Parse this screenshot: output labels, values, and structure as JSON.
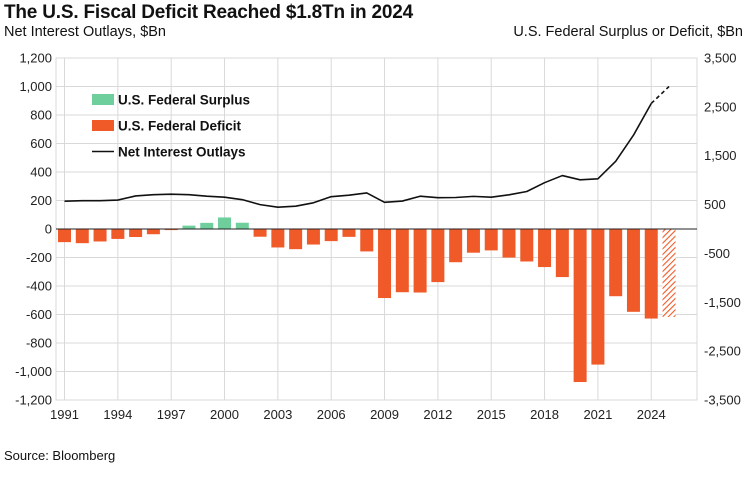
{
  "title": "The U.S. Fiscal Deficit Reached $1.8Tn in 2024",
  "left_axis_label": "Net Interest Outlays, $Bn",
  "right_axis_label": "U.S. Federal Surplus or Deficit, $Bn",
  "source": "Source: Bloomberg",
  "colors": {
    "surplus": "#6fcf9c",
    "deficit": "#f05a28",
    "interest": "#111111",
    "grid": "#d9d9d9"
  },
  "chart_data": {
    "type": "bar",
    "grid": true,
    "legend_position": "top-left",
    "left_axis": {
      "min": -1200,
      "max": 1200,
      "ticks": [
        1200,
        1000,
        800,
        600,
        400,
        200,
        0,
        -200,
        -400,
        -600,
        -800,
        -1000,
        -1200
      ],
      "tick_labels": [
        "1,200",
        "1,000",
        "800",
        "600",
        "400",
        "200",
        "0",
        "-200",
        "-400",
        "-600",
        "-800",
        "-1,000",
        "-1,200"
      ]
    },
    "right_axis": {
      "min": -3500,
      "max": 3500,
      "ticks": [
        3500,
        2500,
        1500,
        500,
        -500,
        -1500,
        -2500,
        -3500
      ],
      "tick_labels": [
        "3,500",
        "2,500",
        "1,500",
        "500",
        "-500",
        "-1,500",
        "-2,500",
        "-3,500"
      ]
    },
    "x_tick_years": [
      1991,
      1994,
      1997,
      2000,
      2003,
      2006,
      2009,
      2012,
      2015,
      2018,
      2021,
      2024
    ],
    "x_tick_labels": [
      "1991",
      "1994",
      "1997",
      "2000",
      "2003",
      "2006",
      "2009",
      "2012",
      "2015",
      "2018",
      "2021",
      "2024"
    ],
    "years": [
      1991,
      1992,
      1993,
      1994,
      1995,
      1996,
      1997,
      1998,
      1999,
      2000,
      2001,
      2002,
      2003,
      2004,
      2005,
      2006,
      2007,
      2008,
      2009,
      2010,
      2011,
      2012,
      2013,
      2014,
      2015,
      2016,
      2017,
      2018,
      2019,
      2020,
      2021,
      2022,
      2023,
      2024,
      2025
    ],
    "series": [
      {
        "name": "U.S. Federal Surplus",
        "type": "bar",
        "values": [
          null,
          null,
          null,
          null,
          null,
          null,
          null,
          69,
          126,
          236,
          128,
          null,
          null,
          null,
          null,
          null,
          null,
          null,
          null,
          null,
          null,
          null,
          null,
          null,
          null,
          null,
          null,
          null,
          null,
          null,
          null,
          null,
          null,
          null,
          null
        ]
      },
      {
        "name": "U.S. Federal Deficit",
        "type": "bar",
        "values": [
          -269,
          -290,
          -255,
          -203,
          -164,
          -107,
          -22,
          null,
          null,
          null,
          null,
          -158,
          -378,
          -413,
          -318,
          -248,
          -161,
          -459,
          -1413,
          -1294,
          -1300,
          -1087,
          -680,
          -485,
          -438,
          -585,
          -665,
          -779,
          -984,
          -3132,
          -2775,
          -1376,
          -1695,
          -1833,
          -1800
        ],
        "projected_from_index": 34
      },
      {
        "name": "Net Interest Outlays",
        "type": "line",
        "values": [
          195,
          199,
          199,
          203,
          232,
          241,
          244,
          241,
          230,
          223,
          206,
          171,
          153,
          160,
          184,
          227,
          237,
          253,
          187,
          196,
          230,
          220,
          221,
          229,
          223,
          240,
          263,
          325,
          375,
          345,
          352,
          475,
          658,
          881,
          1000
        ],
        "projected_from_index": 33
      }
    ]
  }
}
